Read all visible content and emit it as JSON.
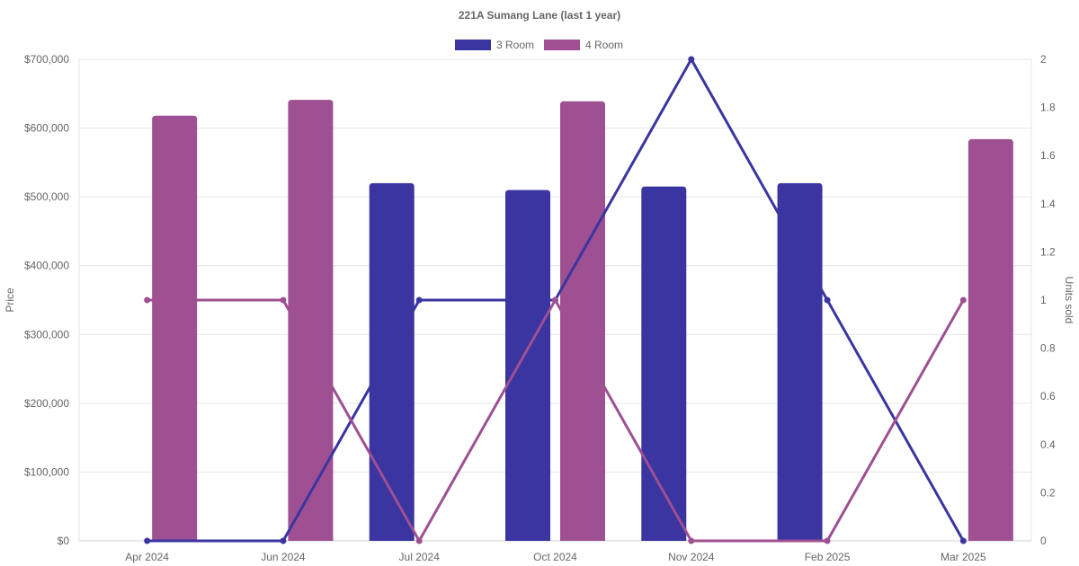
{
  "chart_data": {
    "type": "bar",
    "title": "221A Sumang Lane (last 1 year)",
    "categories": [
      "Apr 2024",
      "Jun 2024",
      "Jul 2024",
      "Oct 2024",
      "Nov 2024",
      "Feb 2025",
      "Mar 2025"
    ],
    "y_left": {
      "label": "Price",
      "range": [
        0,
        700000
      ],
      "ticks": [
        "$0",
        "$100,000",
        "$200,000",
        "$300,000",
        "$400,000",
        "$500,000",
        "$600,000",
        "$700,000"
      ]
    },
    "y_right": {
      "label": "Units sold",
      "range": [
        0,
        2
      ],
      "ticks": [
        "0",
        "0.2",
        "0.4",
        "0.6",
        "0.8",
        "1",
        "1.2",
        "1.4",
        "1.6",
        "1.8",
        "2"
      ]
    },
    "legend": [
      "3 Room",
      "4 Room"
    ],
    "legend_position": "top",
    "grid": true,
    "bar_series": [
      {
        "name": "3 Room",
        "color": "#3a35a1",
        "axis": "left",
        "values": [
          null,
          null,
          520000,
          510000,
          515000,
          520000,
          null
        ]
      },
      {
        "name": "4 Room",
        "color": "#9e5092",
        "axis": "left",
        "values": [
          618000,
          641000,
          null,
          639000,
          null,
          null,
          584000
        ]
      }
    ],
    "line_series": [
      {
        "name": "3 Room",
        "color": "#3a35a1",
        "axis": "right",
        "values": [
          0,
          0,
          1,
          1,
          2,
          1,
          0
        ]
      },
      {
        "name": "4 Room",
        "color": "#9e5092",
        "axis": "right",
        "values": [
          1,
          1,
          0,
          1,
          0,
          0,
          1
        ]
      }
    ]
  }
}
